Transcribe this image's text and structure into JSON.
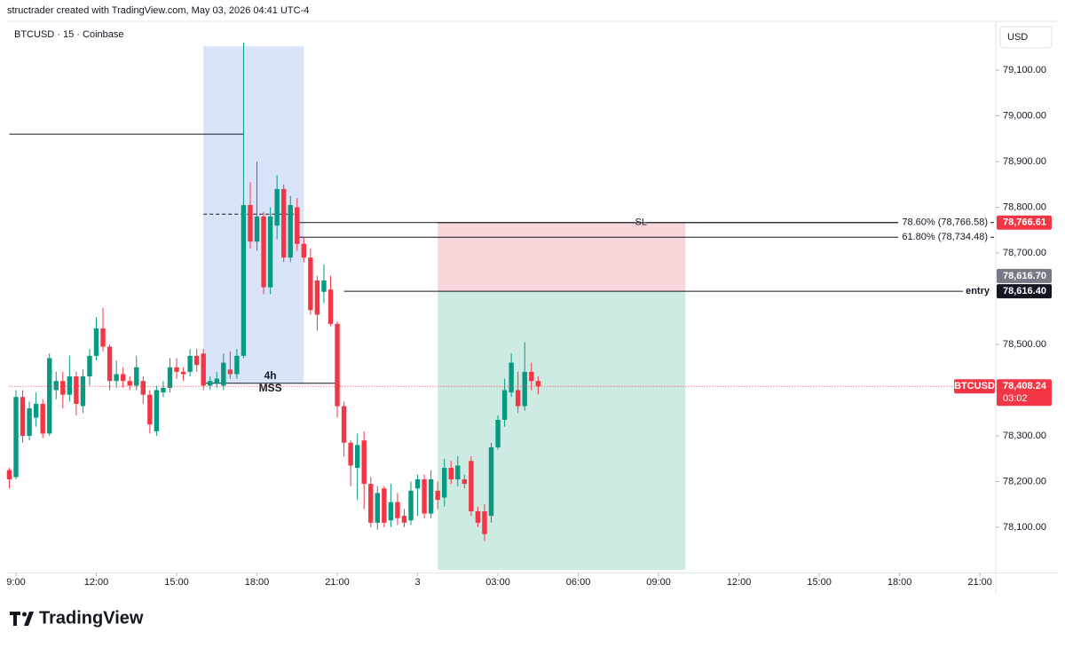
{
  "chart_data": {
    "type": "candlestick",
    "header": "structrader created with TradingView.com, May 03, 2026 04:41 UTC-4",
    "title": "BTCUSD · 15 · Coinbase",
    "currency": "USD",
    "symbol": "BTCUSD",
    "countdown": "03:02",
    "brand": "TradingView",
    "xlim": [
      8.75,
      45.5
    ],
    "ylim": [
      78000,
      79195
    ],
    "xticks": [
      {
        "value": 9,
        "label": "9:00"
      },
      {
        "value": 12,
        "label": "12:00"
      },
      {
        "value": 15,
        "label": "15:00"
      },
      {
        "value": 18,
        "label": "18:00"
      },
      {
        "value": 21,
        "label": "21:00"
      },
      {
        "value": 24,
        "label": "3"
      },
      {
        "value": 27,
        "label": "03:00"
      },
      {
        "value": 30,
        "label": "06:00"
      },
      {
        "value": 33,
        "label": "09:00"
      },
      {
        "value": 36,
        "label": "12:00"
      },
      {
        "value": 39,
        "label": "15:00"
      },
      {
        "value": 42,
        "label": "18:00"
      },
      {
        "value": 45,
        "label": "21:00"
      }
    ],
    "yticks": [
      {
        "value": 78100,
        "label": "78,100.00"
      },
      {
        "value": 78200,
        "label": "78,200.00"
      },
      {
        "value": 78300,
        "label": "78,300.00"
      },
      {
        "value": 78500,
        "label": "78,500.00"
      },
      {
        "value": 78700,
        "label": "78,700.00"
      },
      {
        "value": 78800,
        "label": "78,800.00"
      },
      {
        "value": 78900,
        "label": "78,900.00"
      },
      {
        "value": 79000,
        "label": "79,000.00"
      },
      {
        "value": 79100,
        "label": "79,100.00"
      }
    ],
    "x": [
      8.75,
      9,
      9.25,
      9.5,
      9.75,
      10,
      10.25,
      10.5,
      10.75,
      11,
      11.25,
      11.5,
      11.75,
      12,
      12.25,
      12.5,
      12.75,
      13,
      13.25,
      13.5,
      13.75,
      14,
      14.25,
      14.5,
      14.75,
      15,
      15.25,
      15.5,
      15.75,
      16,
      16.25,
      16.5,
      16.75,
      17,
      17.25,
      17.5,
      17.75,
      18,
      18.25,
      18.5,
      18.75,
      19,
      19.25,
      19.5,
      19.75,
      20,
      20.25,
      20.5,
      20.75,
      21,
      21.25,
      21.5,
      21.75,
      22,
      22.25,
      22.5,
      22.75,
      23,
      23.25,
      23.5,
      23.75,
      24,
      24.25,
      24.5,
      24.75,
      25,
      25.25,
      25.5,
      25.75,
      26,
      26.25,
      26.5,
      26.75,
      27,
      27.25,
      27.5,
      27.75,
      28,
      28.25,
      28.5
    ],
    "series": [
      {
        "name": "BTCUSD",
        "up_color": "#089981",
        "down_color": "#f23645",
        "open": [
          78225,
          78210,
          78385,
          78300,
          78340,
          78370,
          78305,
          78400,
          78420,
          78390,
          78430,
          78365,
          78430,
          78475,
          78535,
          78495,
          78420,
          78435,
          78420,
          78410,
          78420,
          78390,
          78310,
          78395,
          78405,
          78450,
          78440,
          78440,
          78475,
          78480,
          78410,
          78415,
          78410,
          78445,
          78435,
          78475,
          78805,
          78725,
          78780,
          78625,
          78760,
          78840,
          78690,
          78800,
          78720,
          78690,
          78640,
          78615,
          78620,
          78545,
          78365,
          78285,
          78230,
          78290,
          78195,
          78110,
          78185,
          78115,
          78155,
          78125,
          78115,
          78185,
          78205,
          78130,
          78180,
          78165,
          78230,
          78205,
          78205,
          78245,
          78135,
          78135,
          78125,
          78275,
          78335,
          78395,
          78400,
          78365,
          78440,
          78420
        ],
        "high": [
          78230,
          78400,
          78400,
          78375,
          78395,
          78380,
          78480,
          78440,
          78440,
          78475,
          78440,
          78445,
          78490,
          78560,
          78580,
          78500,
          78465,
          78450,
          78430,
          78475,
          78430,
          78400,
          78410,
          78420,
          78470,
          78470,
          78450,
          78490,
          78490,
          78490,
          78430,
          78440,
          78480,
          78485,
          78490,
          79160,
          78855,
          78900,
          78790,
          78800,
          78870,
          78850,
          78825,
          78820,
          78735,
          78710,
          78650,
          78675,
          78650,
          78550,
          78375,
          78290,
          78305,
          78310,
          78210,
          78190,
          78190,
          78195,
          78175,
          78140,
          78200,
          78215,
          78215,
          78225,
          78200,
          78250,
          78245,
          78255,
          78215,
          78255,
          78145,
          78150,
          78285,
          78345,
          78425,
          78480,
          78440,
          78505,
          78460,
          78430
        ],
        "low": [
          78185,
          78205,
          78285,
          78290,
          78320,
          78295,
          78300,
          78380,
          78360,
          78375,
          78345,
          78350,
          78410,
          78465,
          78485,
          78400,
          78405,
          78405,
          78400,
          78400,
          78370,
          78305,
          78300,
          78385,
          78395,
          78425,
          78420,
          78430,
          78440,
          78400,
          78400,
          78405,
          78400,
          78425,
          78425,
          78470,
          78710,
          78705,
          78610,
          78610,
          78730,
          78680,
          78680,
          78705,
          78680,
          78565,
          78530,
          78590,
          78540,
          78340,
          78255,
          78190,
          78160,
          78140,
          78100,
          78095,
          78100,
          78100,
          78105,
          78100,
          78105,
          78125,
          78120,
          78120,
          78140,
          78145,
          78195,
          78190,
          78185,
          78125,
          78100,
          78070,
          78110,
          78270,
          78320,
          78385,
          78350,
          78355,
          78400,
          78390
        ],
        "close": [
          78205,
          78385,
          78300,
          78360,
          78370,
          78305,
          78470,
          78420,
          78390,
          78430,
          78370,
          78430,
          78475,
          78535,
          78495,
          78420,
          78435,
          78420,
          78410,
          78450,
          78390,
          78325,
          78400,
          78405,
          78450,
          78440,
          78435,
          78475,
          78455,
          78410,
          78420,
          78425,
          78460,
          78435,
          78475,
          78805,
          78725,
          78780,
          78625,
          78780,
          78840,
          78690,
          78805,
          78720,
          78690,
          78575,
          78565,
          78640,
          78545,
          78365,
          78285,
          78235,
          78280,
          78195,
          78110,
          78175,
          78110,
          78155,
          78120,
          78110,
          78180,
          78205,
          78130,
          78205,
          78160,
          78230,
          78205,
          78235,
          78195,
          78135,
          78110,
          78085,
          78275,
          78335,
          78400,
          78460,
          78365,
          78440,
          78420,
          78408.24
        ]
      }
    ],
    "drawings": {
      "level_line": {
        "value": 78960,
        "x0": 8.75,
        "x1": 17.5
      },
      "range_box": {
        "x0": 16,
        "x1": 19.75,
        "top": 79152,
        "bottom": 78415,
        "color": "#d9e4fb"
      },
      "dashed_line": {
        "value": 78785,
        "x0": 16,
        "x1": 19.5
      },
      "mss": {
        "value": 78415,
        "x0": 16,
        "x1": 21,
        "label": "4h",
        "text": "MSS"
      },
      "fib": [
        {
          "value": 78766.58,
          "x0": 19.5,
          "label": "78.60% (78,766.58)"
        },
        {
          "value": 78734.48,
          "x0": 19.5,
          "label": "61.80% (78,734.48)"
        }
      ],
      "position": {
        "x0": 24.75,
        "x1": 34,
        "stop": 78766.61,
        "entry": 78616.4,
        "target": 78007,
        "stop_label": "SL",
        "stop_color": "#f9d6da",
        "target_color": "#cdeae3"
      },
      "entry_line": {
        "value": 78616.4,
        "x0": 21.25,
        "label": "entry"
      }
    },
    "price_labels": [
      {
        "value": 78766.61,
        "label": "78,766.61",
        "color": "#f23645"
      },
      {
        "value": 78616.7,
        "label": "78,616.70",
        "color": "#787b86"
      },
      {
        "value": 78616.4,
        "label": "78,616.40",
        "color": "#131722"
      },
      {
        "value": 78408.24,
        "label": "78,408.24",
        "color": "#f23645"
      }
    ]
  }
}
